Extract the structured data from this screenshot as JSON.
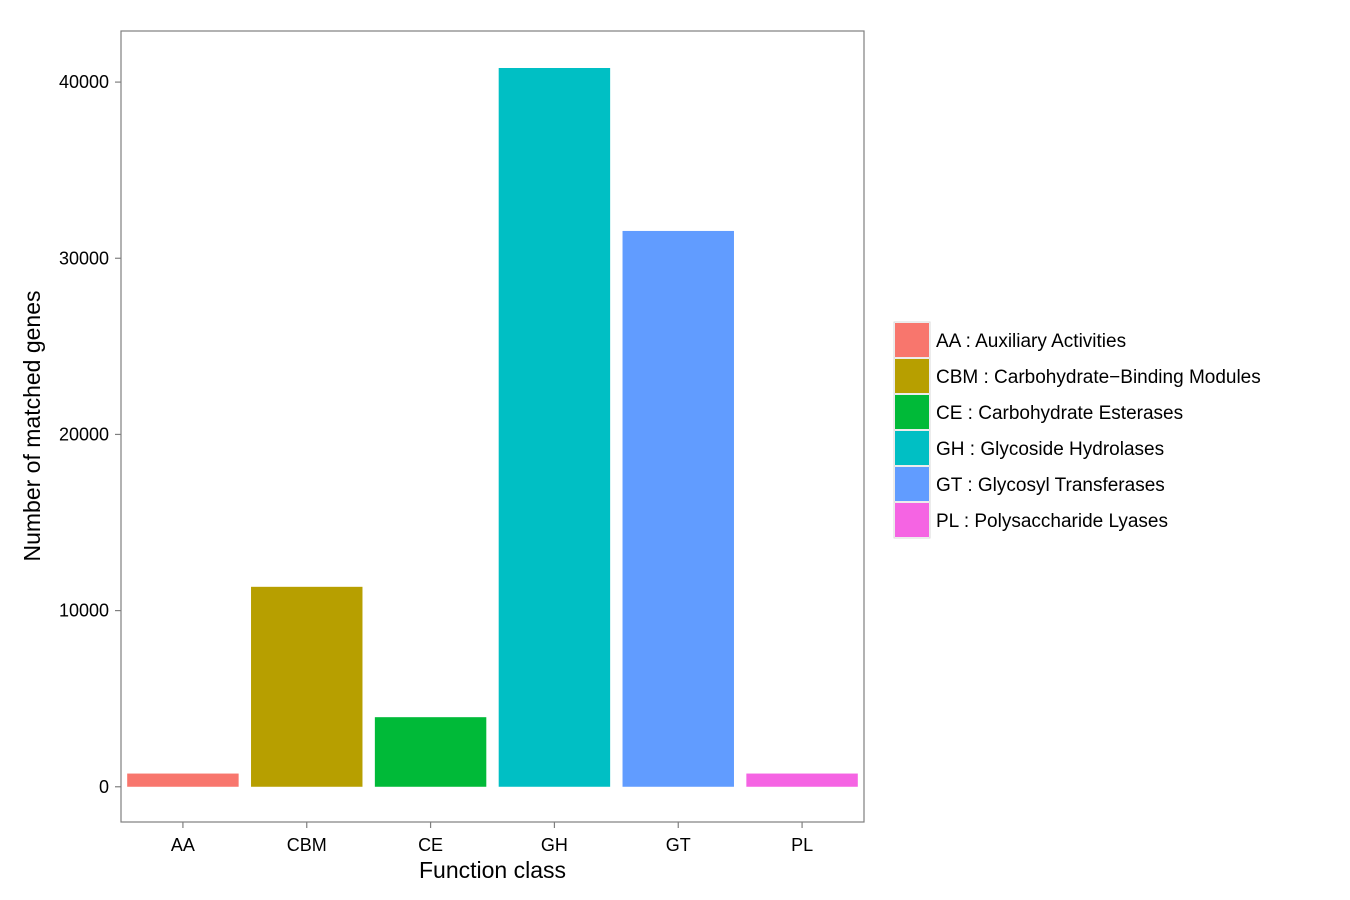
{
  "chart_data": {
    "type": "bar",
    "categories": [
      "AA",
      "CBM",
      "CE",
      "GH",
      "GT",
      "PL"
    ],
    "values": [
      750,
      11350,
      3950,
      40800,
      31550,
      750
    ],
    "colors": [
      "#F8766D",
      "#B79F00",
      "#00BA38",
      "#00BFC4",
      "#619CFF",
      "#F564E3"
    ],
    "xlabel": "Function class",
    "ylabel": "Number of matched genes",
    "ylim": [
      -2000,
      42900
    ],
    "yticks": [
      0,
      10000,
      20000,
      30000,
      40000
    ],
    "ytick_labels": [
      "0",
      "10000",
      "20000",
      "30000",
      "40000"
    ],
    "grid": false,
    "legend": {
      "placement": "right",
      "entries": [
        "AA : Auxiliary Activities",
        "CBM : Carbohydrate−Binding Modules",
        "CE : Carbohydrate Esterases",
        "GH : Glycoside Hydrolases",
        "GT : Glycosyl Transferases",
        "PL : Polysaccharide Lyases"
      ]
    }
  }
}
